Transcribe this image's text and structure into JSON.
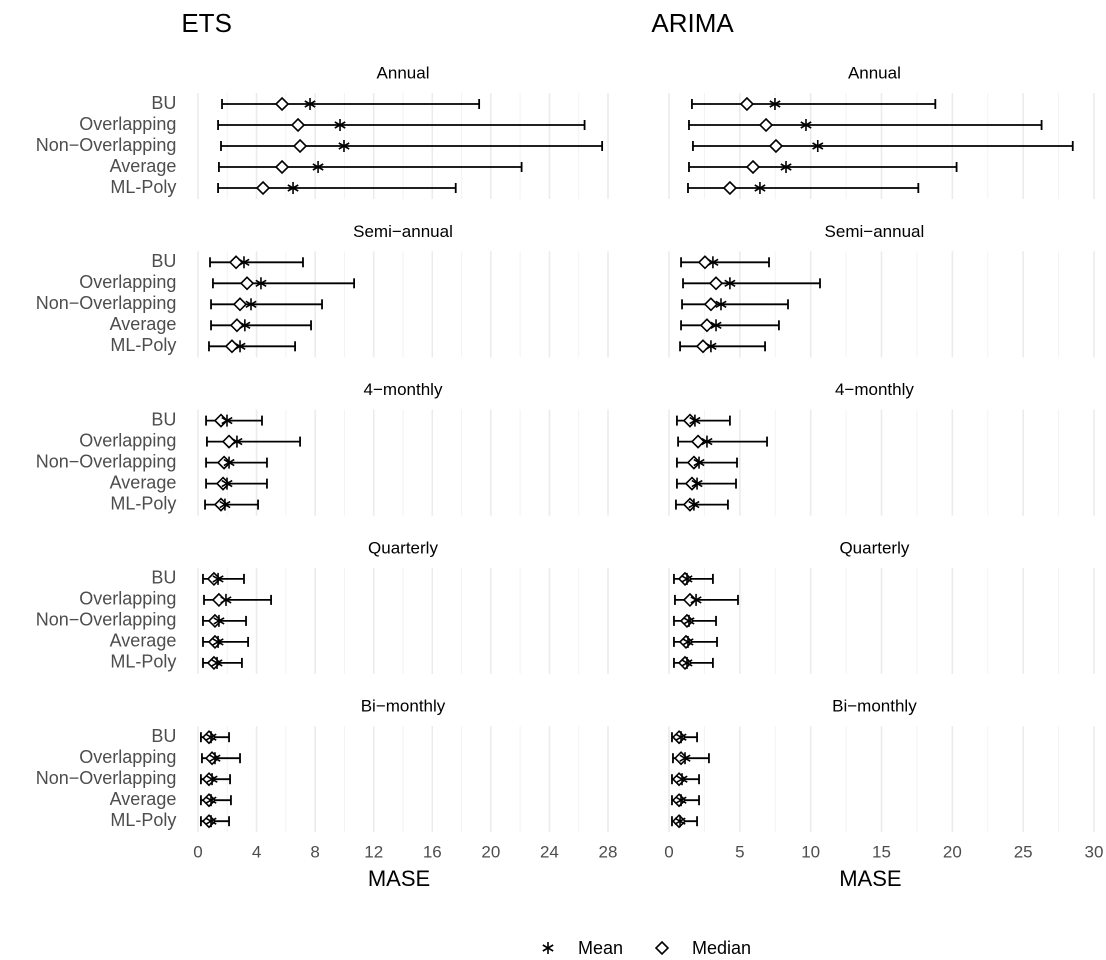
{
  "chart_data": [
    {
      "type": "errorbar",
      "title": "ETS",
      "x_label": "MASE",
      "xlim": [
        -1,
        29
      ],
      "xticks": [
        0,
        4,
        8,
        12,
        16,
        20,
        24,
        28
      ],
      "grid": true,
      "categories": [
        "BU",
        "Overlapping",
        "Non−Overlapping",
        "Average",
        "ML-Poly"
      ],
      "facets": [
        {
          "title": "Annual",
          "mean": [
            7.65,
            9.7,
            9.97,
            8.2,
            6.49
          ],
          "median": [
            5.74,
            6.83,
            6.97,
            5.74,
            4.44
          ],
          "lower": [
            1.64,
            1.37,
            1.57,
            1.43,
            1.37
          ],
          "upper": [
            19.2,
            26.4,
            27.6,
            22.1,
            17.6
          ]
        },
        {
          "title": "Semi−annual",
          "mean": [
            3.14,
            4.3,
            3.62,
            3.2,
            2.87
          ],
          "median": [
            2.6,
            3.35,
            2.87,
            2.66,
            2.32
          ],
          "lower": [
            0.82,
            1.02,
            0.89,
            0.89,
            0.75
          ],
          "upper": [
            7.17,
            10.66,
            8.47,
            7.72,
            6.63
          ]
        },
        {
          "title": "4−monthly",
          "mean": [
            1.98,
            2.66,
            2.12,
            1.98,
            1.84
          ],
          "median": [
            1.57,
            2.12,
            1.78,
            1.71,
            1.57
          ],
          "lower": [
            0.55,
            0.61,
            0.55,
            0.55,
            0.48
          ],
          "upper": [
            4.37,
            6.97,
            4.71,
            4.71,
            4.1
          ]
        },
        {
          "title": "Quarterly",
          "mean": [
            1.37,
            1.91,
            1.43,
            1.37,
            1.3
          ],
          "median": [
            1.09,
            1.43,
            1.16,
            1.16,
            1.09
          ],
          "lower": [
            0.34,
            0.41,
            0.34,
            0.34,
            0.34
          ],
          "upper": [
            3.14,
            4.99,
            3.28,
            3.42,
            3.0
          ]
        },
        {
          "title": "Bi−monthly",
          "mean": [
            0.89,
            1.16,
            0.96,
            0.89,
            0.89
          ],
          "median": [
            0.75,
            0.96,
            0.75,
            0.75,
            0.75
          ],
          "lower": [
            0.2,
            0.27,
            0.2,
            0.2,
            0.2
          ],
          "upper": [
            2.12,
            2.87,
            2.19,
            2.25,
            2.12
          ]
        }
      ]
    },
    {
      "type": "errorbar",
      "title": "ARIMA",
      "x_label": "MASE",
      "xlim": [
        -1.1,
        30.1
      ],
      "xticks": [
        0,
        5,
        10,
        15,
        20,
        25,
        30
      ],
      "grid": true,
      "facets": [
        {
          "title": "Annual",
          "mean": [
            7.48,
            9.67,
            10.5,
            8.26,
            6.42
          ],
          "median": [
            5.5,
            6.85,
            7.55,
            5.93,
            4.3
          ],
          "lower": [
            1.62,
            1.41,
            1.69,
            1.41,
            1.34
          ],
          "upper": [
            18.8,
            26.3,
            28.5,
            20.3,
            17.6
          ]
        },
        {
          "title": "Semi−annual",
          "mean": [
            3.1,
            4.3,
            3.67,
            3.32,
            2.96
          ],
          "median": [
            2.54,
            3.32,
            2.96,
            2.68,
            2.4
          ],
          "lower": [
            0.85,
            0.99,
            0.92,
            0.85,
            0.78
          ],
          "upper": [
            7.06,
            10.66,
            8.4,
            7.76,
            6.78
          ]
        },
        {
          "title": "4−monthly",
          "mean": [
            1.83,
            2.68,
            2.12,
            1.98,
            1.76
          ],
          "median": [
            1.48,
            2.05,
            1.76,
            1.62,
            1.48
          ],
          "lower": [
            0.56,
            0.64,
            0.56,
            0.56,
            0.49
          ],
          "upper": [
            4.3,
            6.92,
            4.8,
            4.73,
            4.16
          ]
        },
        {
          "title": "Quarterly",
          "mean": [
            1.27,
            1.91,
            1.41,
            1.34,
            1.27
          ],
          "median": [
            1.13,
            1.48,
            1.27,
            1.2,
            1.13
          ],
          "lower": [
            0.35,
            0.42,
            0.35,
            0.35,
            0.35
          ],
          "upper": [
            3.1,
            4.87,
            3.32,
            3.39,
            3.1
          ]
        },
        {
          "title": "Bi−monthly",
          "mean": [
            0.85,
            1.13,
            0.92,
            0.85,
            0.78
          ],
          "median": [
            0.71,
            0.85,
            0.71,
            0.71,
            0.71
          ],
          "lower": [
            0.21,
            0.28,
            0.21,
            0.21,
            0.21
          ],
          "upper": [
            1.98,
            2.82,
            2.12,
            2.12,
            1.98
          ]
        }
      ]
    }
  ],
  "legend": [
    {
      "name": "Mean",
      "marker": "asterisk"
    },
    {
      "name": "Median",
      "marker": "diamond"
    }
  ]
}
